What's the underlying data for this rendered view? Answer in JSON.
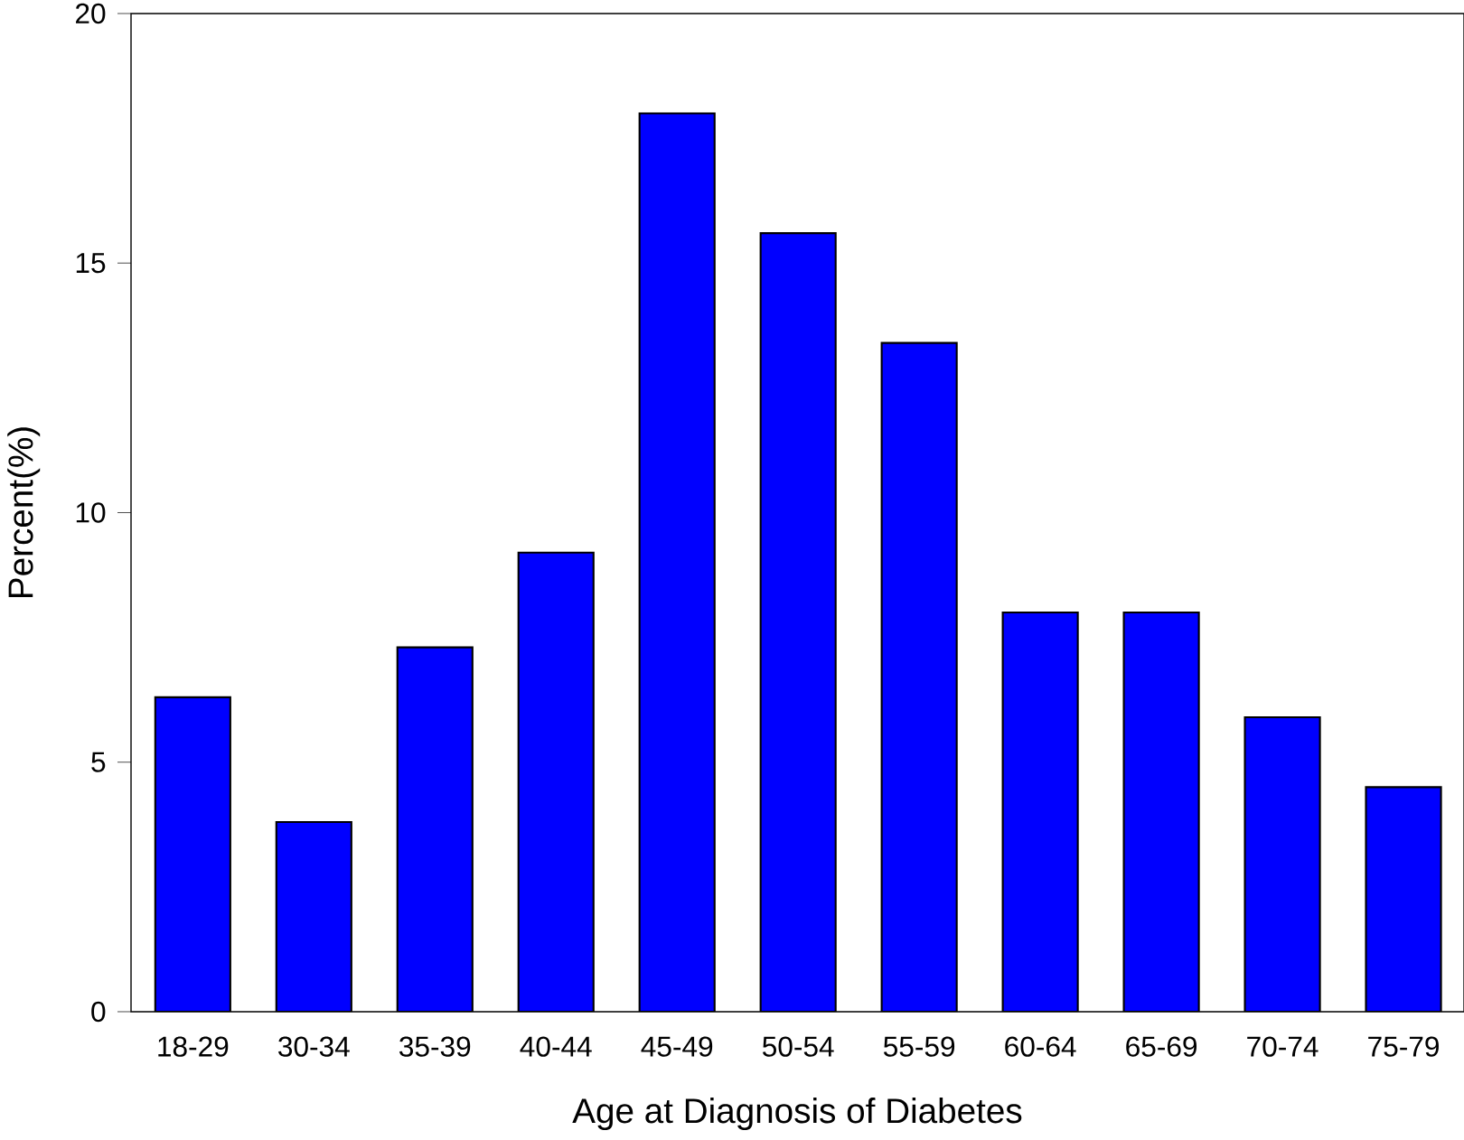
{
  "chart_data": {
    "type": "bar",
    "xlabel": "Age at Diagnosis of Diabetes",
    "ylabel": "Percent(%)",
    "categories": [
      "18-29",
      "30-34",
      "35-39",
      "40-44",
      "45-49",
      "50-54",
      "55-59",
      "60-64",
      "65-69",
      "70-74",
      "75-79"
    ],
    "values": [
      6.3,
      3.8,
      7.3,
      9.2,
      18.0,
      15.6,
      13.4,
      8.0,
      8.0,
      5.9,
      4.5
    ],
    "color": "#0000ff",
    "ylim": [
      0,
      20
    ],
    "yticks": [
      0,
      5,
      10,
      15,
      20
    ]
  }
}
